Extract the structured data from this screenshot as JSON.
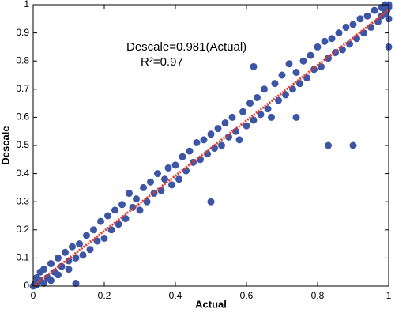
{
  "chart_data": {
    "type": "scatter",
    "xlabel": "Actual",
    "ylabel": "Descale",
    "annotations": [
      "Descale=0.981(Actual)",
      "R²=0.97"
    ],
    "xlim": [
      0,
      1
    ],
    "ylim": [
      0,
      1
    ],
    "xticks": [
      0,
      0.2,
      0.4,
      0.6,
      0.8,
      1
    ],
    "yticks": [
      0,
      0.1,
      0.2,
      0.3,
      0.4,
      0.5,
      0.6,
      0.7,
      0.8,
      0.9,
      1
    ],
    "grid": false,
    "fit": {
      "slope": 0.981,
      "color": "#e8392f"
    },
    "series": [
      {
        "color": "#3d55a5",
        "x": [
          0,
          0.005,
          0.01,
          0.01,
          0.02,
          0.02,
          0.03,
          0.03,
          0.04,
          0.05,
          0.05,
          0.06,
          0.07,
          0.07,
          0.08,
          0.09,
          0.1,
          0.1,
          0.11,
          0.12,
          0.12,
          0.13,
          0.14,
          0.15,
          0.16,
          0.17,
          0.18,
          0.19,
          0.2,
          0.21,
          0.22,
          0.23,
          0.24,
          0.25,
          0.26,
          0.27,
          0.28,
          0.29,
          0.3,
          0.31,
          0.32,
          0.33,
          0.34,
          0.35,
          0.36,
          0.37,
          0.38,
          0.39,
          0.4,
          0.41,
          0.42,
          0.43,
          0.44,
          0.45,
          0.46,
          0.47,
          0.48,
          0.49,
          0.5,
          0.5,
          0.51,
          0.52,
          0.53,
          0.54,
          0.55,
          0.56,
          0.57,
          0.58,
          0.59,
          0.6,
          0.61,
          0.62,
          0.63,
          0.64,
          0.65,
          0.66,
          0.67,
          0.68,
          0.69,
          0.7,
          0.71,
          0.72,
          0.73,
          0.74,
          0.75,
          0.76,
          0.77,
          0.78,
          0.79,
          0.8,
          0.81,
          0.82,
          0.83,
          0.83,
          0.84,
          0.85,
          0.86,
          0.87,
          0.88,
          0.89,
          0.9,
          0.9,
          0.91,
          0.92,
          0.93,
          0.94,
          0.95,
          0.96,
          0.97,
          0.98,
          0.98,
          0.99,
          0.99,
          1,
          1,
          1,
          1,
          0.995,
          0.62,
          0.74
        ],
        "values": [
          0,
          0.01,
          0.03,
          0.005,
          0.02,
          0.05,
          0.01,
          0.06,
          0.03,
          0.08,
          0.02,
          0.05,
          0.1,
          0.04,
          0.07,
          0.12,
          0.09,
          0.06,
          0.14,
          0.01,
          0.1,
          0.15,
          0.11,
          0.18,
          0.13,
          0.2,
          0.16,
          0.23,
          0.17,
          0.25,
          0.2,
          0.27,
          0.22,
          0.29,
          0.24,
          0.33,
          0.28,
          0.31,
          0.27,
          0.35,
          0.3,
          0.37,
          0.33,
          0.4,
          0.34,
          0.38,
          0.42,
          0.36,
          0.43,
          0.38,
          0.46,
          0.41,
          0.48,
          0.44,
          0.51,
          0.45,
          0.52,
          0.47,
          0.3,
          0.54,
          0.49,
          0.56,
          0.5,
          0.58,
          0.53,
          0.6,
          0.55,
          0.52,
          0.62,
          0.57,
          0.65,
          0.59,
          0.67,
          0.61,
          0.7,
          0.63,
          0.6,
          0.72,
          0.66,
          0.75,
          0.68,
          0.79,
          0.7,
          0.76,
          0.72,
          0.8,
          0.74,
          0.82,
          0.77,
          0.85,
          0.78,
          0.87,
          0.5,
          0.81,
          0.88,
          0.83,
          0.9,
          0.84,
          0.92,
          0.86,
          0.5,
          0.93,
          0.88,
          0.95,
          0.9,
          0.96,
          0.92,
          0.98,
          0.94,
          0.99,
          0.96,
          1,
          0.97,
          0.99,
          0.95,
          0.85,
          1,
          0.98,
          0.78,
          0.6
        ]
      }
    ]
  }
}
